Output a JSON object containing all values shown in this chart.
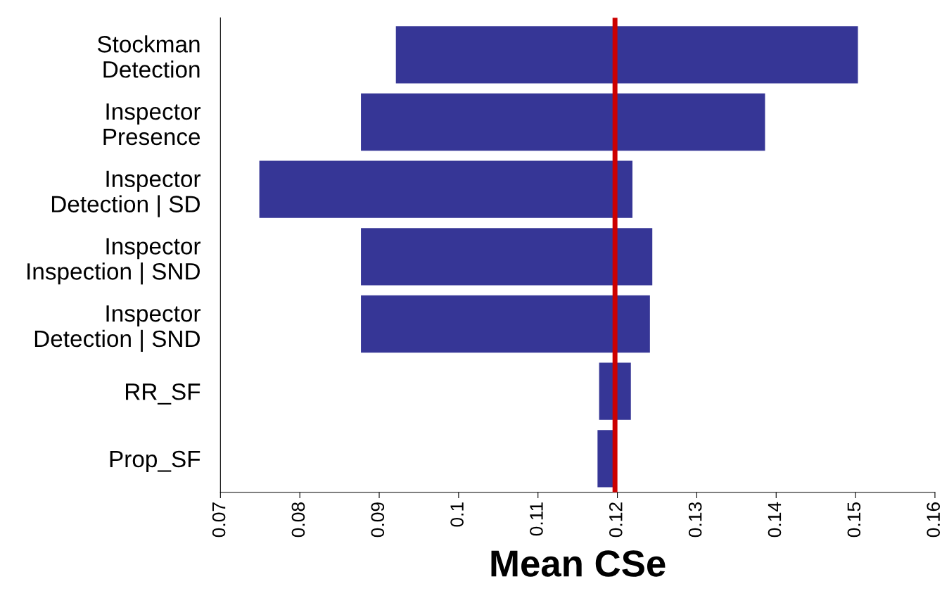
{
  "chart_data": {
    "type": "bar",
    "orientation": "horizontal",
    "xlabel": "Mean CSe",
    "categories": [
      "Stockman\nDetection",
      "Inspector\nPresence",
      "Inspector\nDetection | SD",
      "Inspector\nInspection | SND",
      "Inspector\nDetection | SND",
      "RR_SF",
      "Prop_SF"
    ],
    "base": [
      0.0921,
      0.0877,
      0.0749,
      0.0877,
      0.0877,
      0.1177,
      0.1175
    ],
    "values": [
      0.0582,
      0.0509,
      0.047,
      0.0367,
      0.0364,
      0.004,
      0.0021
    ],
    "color": "#363696",
    "xlim": [
      0.07,
      0.16
    ],
    "xticks": [
      0.07,
      0.08,
      0.09,
      0.1,
      0.11,
      0.12,
      0.13,
      0.14,
      0.15,
      0.16
    ],
    "ref_lines": [
      {
        "axis": "x",
        "value": 0.1197,
        "color": "#cc0000",
        "line_style": "solid"
      }
    ],
    "grid": false,
    "legend": false
  }
}
